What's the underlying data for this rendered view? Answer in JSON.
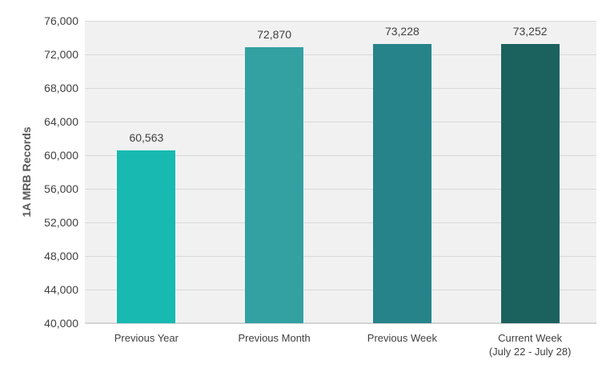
{
  "chart_data": {
    "type": "bar",
    "title": "",
    "xlabel": "",
    "ylabel": "1A MRB Records",
    "ylim": [
      40000,
      76000
    ],
    "yticks": [
      40000,
      44000,
      48000,
      52000,
      56000,
      60000,
      64000,
      68000,
      72000,
      76000
    ],
    "ytick_labels": [
      "40,000",
      "44,000",
      "48,000",
      "52,000",
      "56,000",
      "60,000",
      "64,000",
      "68,000",
      "72,000",
      "76,000"
    ],
    "grid": true,
    "legend": null,
    "categories": [
      "Previous Year",
      "Previous Month",
      "Previous Week",
      "Current Week (July 22 - July 28)"
    ],
    "category_lines": [
      [
        "Previous Year"
      ],
      [
        "Previous Month"
      ],
      [
        "Previous Week"
      ],
      [
        "Current Week",
        "(July 22 - July 28)"
      ]
    ],
    "values": [
      60563,
      72870,
      73228,
      73252
    ],
    "value_labels": [
      "60,563",
      "72,870",
      "73,228",
      "73,252"
    ],
    "colors": [
      "#17b9b1",
      "#33a0a2",
      "#27838a",
      "#1b615e"
    ]
  }
}
